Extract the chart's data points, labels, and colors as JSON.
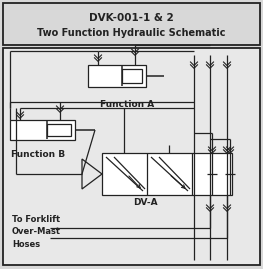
{
  "title_line1": "DVK-001-1 & 2",
  "title_line2": "Two Function Hydraulic Schematic",
  "bg_color": "#d8d8d8",
  "inner_bg": "#e8e8e8",
  "line_color": "#222222",
  "label_func_a": "Function A",
  "label_func_b": "Function B",
  "label_dv": "DV-A",
  "label_hoses": "To Forklift\nOver-Mast\nHoses",
  "title_fs": 7.5,
  "label_fs": 6.5
}
